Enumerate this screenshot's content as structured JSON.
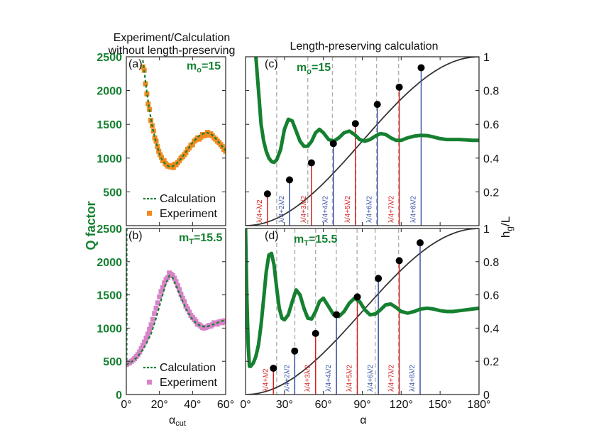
{
  "figure": {
    "left_title_line1": "Experiment/Calculation",
    "left_title_line2": "without length-preserving",
    "right_title": "Length-preserving calculation",
    "y_label_left": "Q factor",
    "y_label_right_main": "h",
    "y_label_right_sub": "g",
    "y_label_right_tail": "/L",
    "x_label_left_main": "α",
    "x_label_left_sub": "cut",
    "x_label_right": "α"
  },
  "colors": {
    "green": "#158030",
    "orange": "#f08a1c",
    "pink": "#d882c8",
    "black_curve": "#333333",
    "red_line": "#d62020",
    "blue_line": "#3a55a8",
    "gray_dash": "#b0b0b0"
  },
  "chart_data": [
    {
      "panel": "a",
      "type": "line",
      "label": "(a)",
      "mode": "mo=15",
      "mode_main": "m",
      "mode_sub": "o",
      "mode_value": "=15",
      "xlim": [
        0,
        60
      ],
      "ylim": [
        0,
        2500
      ],
      "yticks": [
        "500",
        "1000",
        "1500",
        "2000",
        "2500"
      ],
      "ytick_values": [
        500,
        1000,
        1500,
        2000,
        2500
      ],
      "xticks": [],
      "legend": [
        "Calculation",
        "Experiment"
      ],
      "calculation": {
        "x": [
          10,
          11,
          12,
          13,
          14,
          16,
          18,
          20,
          22,
          24,
          26,
          28,
          30,
          33,
          36,
          40,
          44,
          48,
          51,
          54,
          57,
          60
        ],
        "y": [
          2450,
          2250,
          2050,
          1870,
          1700,
          1430,
          1230,
          1060,
          960,
          900,
          875,
          880,
          910,
          990,
          1090,
          1230,
          1330,
          1380,
          1360,
          1290,
          1200,
          1110
        ]
      },
      "experiment": {
        "x": [
          10,
          10.8,
          11.6,
          12.4,
          13.2,
          14,
          14.8,
          15.6,
          16.4,
          17.2,
          18,
          18.8,
          19.6,
          20.4,
          21.2,
          22,
          22.8,
          23.6,
          24.4,
          25.2,
          26,
          26.8,
          27.6,
          28.4,
          29.2,
          30,
          31,
          32,
          33,
          34,
          35,
          36,
          37,
          38,
          39,
          40,
          41,
          42,
          43,
          44,
          45,
          46,
          47,
          48,
          49,
          50,
          51,
          52,
          53,
          54,
          55,
          56,
          57,
          58,
          59,
          60
        ],
        "y": [
          2350,
          2300,
          2100,
          1950,
          1800,
          1720,
          1560,
          1480,
          1400,
          1300,
          1250,
          1170,
          1100,
          1050,
          1010,
          960,
          960,
          920,
          900,
          880,
          880,
          870,
          890,
          860,
          910,
          900,
          930,
          960,
          1000,
          1020,
          1050,
          1080,
          1130,
          1150,
          1190,
          1200,
          1250,
          1270,
          1300,
          1280,
          1310,
          1350,
          1330,
          1350,
          1380,
          1340,
          1360,
          1330,
          1300,
          1280,
          1250,
          1230,
          1200,
          1170,
          1130,
          1100
        ]
      }
    },
    {
      "panel": "b",
      "type": "line",
      "label": "(b)",
      "mode": "mT=15.5",
      "mode_main": "m",
      "mode_sub": "T",
      "mode_value": "=15.5",
      "xlim": [
        0,
        60
      ],
      "ylim": [
        0,
        2500
      ],
      "yticks": [
        "0",
        "500",
        "1000",
        "1500",
        "2000",
        "2500"
      ],
      "ytick_values": [
        0,
        500,
        1000,
        1500,
        2000,
        2500
      ],
      "xticks": [
        "0°",
        "20°",
        "40°",
        "60°"
      ],
      "xtick_values": [
        0,
        20,
        40,
        60
      ],
      "legend": [
        "Calculation",
        "Experiment"
      ],
      "calculation": {
        "x": [
          0,
          3,
          6,
          9,
          12,
          15,
          18,
          21,
          24,
          26,
          28,
          30,
          33,
          36,
          39,
          42,
          45,
          48,
          51,
          54,
          57,
          60
        ],
        "y": [
          450,
          490,
          550,
          640,
          760,
          920,
          1150,
          1420,
          1680,
          1790,
          1760,
          1640,
          1460,
          1290,
          1160,
          1080,
          1030,
          1020,
          1040,
          1070,
          1100,
          1120
        ]
      },
      "experiment": {
        "x": [
          0,
          1,
          2,
          3,
          4,
          5,
          6,
          7,
          8,
          9,
          10,
          11,
          12,
          13,
          14,
          15,
          16,
          17,
          18,
          19,
          20,
          21,
          22,
          23,
          24,
          25,
          26,
          27,
          28,
          29,
          30,
          31,
          32,
          33,
          34,
          35,
          36,
          37,
          38,
          39,
          40,
          41,
          42,
          43,
          44,
          45,
          46,
          47,
          48,
          49,
          50,
          51,
          52,
          53,
          54,
          55,
          56,
          57,
          58,
          59,
          60
        ],
        "y": [
          450,
          470,
          480,
          500,
          520,
          540,
          570,
          600,
          640,
          690,
          740,
          790,
          850,
          910,
          980,
          1050,
          1130,
          1220,
          1300,
          1380,
          1470,
          1550,
          1610,
          1680,
          1730,
          1760,
          1830,
          1810,
          1790,
          1750,
          1700,
          1640,
          1580,
          1510,
          1450,
          1400,
          1330,
          1290,
          1240,
          1190,
          1160,
          1130,
          1100,
          1060,
          1050,
          1030,
          1010,
          1000,
          1010,
          1020,
          1040,
          1030,
          1050,
          1080,
          1070,
          1060,
          1090,
          1100,
          1080,
          1110,
          1100
        ]
      }
    },
    {
      "panel": "c",
      "type": "line",
      "label": "(c)",
      "mode": "mo=15",
      "mode_main": "m",
      "mode_sub": "o",
      "mode_value": "=15",
      "xlim": [
        0,
        180
      ],
      "ylim": [
        0,
        1
      ],
      "yticks_right": [
        "0.2",
        "0.4",
        "0.6",
        "0.8",
        "1"
      ],
      "ytick_values": [
        0.2,
        0.4,
        0.6,
        0.8,
        1.0
      ],
      "xticks": [],
      "q_curve": {
        "x": [
          8,
          9,
          10,
          11,
          12,
          14,
          16,
          18,
          20,
          22,
          24,
          27,
          30,
          33,
          36,
          39,
          42,
          45,
          48,
          51,
          54,
          57,
          60,
          64,
          68,
          72,
          76,
          80,
          84,
          88,
          92,
          96,
          100,
          104,
          108,
          112,
          116,
          120,
          125,
          130,
          135,
          140,
          145,
          150,
          155,
          160,
          165,
          170,
          175,
          180
        ],
        "y": [
          1.0,
          0.9,
          0.8,
          0.7,
          0.6,
          0.5,
          0.44,
          0.4,
          0.38,
          0.375,
          0.39,
          0.45,
          0.57,
          0.63,
          0.62,
          0.56,
          0.5,
          0.47,
          0.47,
          0.5,
          0.55,
          0.57,
          0.55,
          0.51,
          0.5,
          0.52,
          0.55,
          0.56,
          0.54,
          0.51,
          0.5,
          0.51,
          0.53,
          0.545,
          0.54,
          0.52,
          0.505,
          0.505,
          0.52,
          0.53,
          0.535,
          0.533,
          0.525,
          0.515,
          0.51,
          0.51,
          0.51,
          0.508,
          0.505,
          0.505
        ]
      },
      "markers": [
        {
          "x": 16.9,
          "y": 0.188,
          "label_left": "λ",
          "label_mid": "+",
          "label_num": "λ",
          "sign": "4",
          "k": "2",
          "color": "red"
        },
        {
          "x": 33.9,
          "y": 0.271,
          "color": "blue"
        },
        {
          "x": 50.8,
          "y": 0.372,
          "color": "red"
        },
        {
          "x": 67.7,
          "y": 0.486,
          "color": "blue"
        },
        {
          "x": 84.7,
          "y": 0.604,
          "color": "red"
        },
        {
          "x": 101.6,
          "y": 0.718,
          "color": "blue"
        },
        {
          "x": 118.5,
          "y": 0.82,
          "color": "red"
        },
        {
          "x": 135.4,
          "y": 0.935,
          "color": "blue"
        }
      ],
      "gray_dashes_x": [
        24,
        48,
        67,
        85,
        101,
        118
      ],
      "marker_labels": [
        {
          "num_a": "λ",
          "op": "+",
          "mult": "",
          "num_b": "λ",
          "den_a": "4",
          "den_b": "2",
          "text": "λ/4+λ/2"
        },
        {
          "num_a": "λ",
          "op": "+2",
          "mult": "",
          "num_b": "λ",
          "den_a": "4",
          "den_b": "2",
          "text": "λ/4+2λ/2"
        },
        {
          "num_a": "λ",
          "op": "+3",
          "mult": "",
          "num_b": "λ",
          "den_a": "4",
          "den_b": "2",
          "text": "λ/4+3λ/2"
        },
        {
          "num_a": "λ",
          "op": "+4",
          "mult": "",
          "num_b": "λ",
          "den_a": "4",
          "den_b": "2",
          "text": "λ/4+4λ/2"
        },
        {
          "num_a": "λ",
          "op": "+5",
          "mult": "",
          "num_b": "λ",
          "den_a": "4",
          "den_b": "2",
          "text": "λ/4+5λ/2"
        },
        {
          "num_a": "λ",
          "op": "+6",
          "mult": "",
          "num_b": "λ",
          "den_a": "4",
          "den_b": "2",
          "text": "λ/4+6λ/2"
        },
        {
          "num_a": "λ",
          "op": "+7",
          "mult": "",
          "num_b": "λ",
          "den_a": "4",
          "den_b": "2",
          "text": "λ/4+7λ/2"
        },
        {
          "num_a": "λ",
          "op": "+8",
          "mult": "",
          "num_b": "λ",
          "den_a": "4",
          "den_b": "2",
          "text": "λ/4+8λ/2"
        }
      ]
    },
    {
      "panel": "d",
      "type": "line",
      "label": "(d)",
      "mode": "mT=15.5",
      "mode_main": "m",
      "mode_sub": "T",
      "mode_value": "=15.5",
      "xlim": [
        0,
        180
      ],
      "ylim": [
        0,
        1
      ],
      "yticks_right": [
        "0",
        "0.2",
        "0.4",
        "0.6",
        "0.8",
        "1"
      ],
      "ytick_values": [
        0,
        0.2,
        0.4,
        0.6,
        0.8,
        1.0
      ],
      "xticks": [
        "0°",
        "30°",
        "60°",
        "90°",
        "120°",
        "150°",
        "180°"
      ],
      "xtick_values": [
        0,
        30,
        60,
        90,
        120,
        150,
        180
      ],
      "q_curve": {
        "x": [
          0,
          1,
          2,
          3,
          4,
          6,
          8,
          10,
          12,
          14,
          16,
          18,
          20,
          22,
          24,
          26,
          28,
          30,
          33,
          36,
          39,
          42,
          45,
          48,
          51,
          54,
          57,
          60,
          64,
          68,
          72,
          76,
          80,
          84,
          88,
          92,
          96,
          100,
          104,
          108,
          112,
          116,
          120,
          125,
          130,
          135,
          140,
          145,
          150,
          155,
          160,
          165,
          170,
          175,
          180
        ],
        "y": [
          1.0,
          0.6,
          0.3,
          0.17,
          0.17,
          0.19,
          0.23,
          0.3,
          0.42,
          0.58,
          0.74,
          0.84,
          0.85,
          0.78,
          0.64,
          0.52,
          0.46,
          0.45,
          0.48,
          0.56,
          0.63,
          0.6,
          0.52,
          0.46,
          0.455,
          0.5,
          0.56,
          0.58,
          0.53,
          0.48,
          0.47,
          0.5,
          0.55,
          0.58,
          0.56,
          0.51,
          0.48,
          0.485,
          0.51,
          0.54,
          0.545,
          0.525,
          0.5,
          0.49,
          0.5,
          0.515,
          0.52,
          0.515,
          0.505,
          0.5,
          0.5,
          0.505,
          0.51,
          0.515,
          0.52
        ]
      },
      "markers": [
        {
          "x": 21.5,
          "y": 0.158,
          "color": "red"
        },
        {
          "x": 37.9,
          "y": 0.262,
          "color": "blue"
        },
        {
          "x": 54.0,
          "y": 0.368,
          "color": "red"
        },
        {
          "x": 70.1,
          "y": 0.481,
          "color": "blue"
        },
        {
          "x": 86.2,
          "y": 0.588,
          "color": "red"
        },
        {
          "x": 102.4,
          "y": 0.699,
          "color": "blue"
        },
        {
          "x": 118.5,
          "y": 0.806,
          "color": "red"
        },
        {
          "x": 134.6,
          "y": 0.914,
          "color": "blue"
        }
      ],
      "gray_dashes_x": [
        24,
        38,
        54,
        70,
        86,
        100,
        118
      ],
      "marker_labels": [
        {
          "num_a": "λ",
          "op": "+",
          "num_b": "λ",
          "den_a": "4",
          "den_b": "2",
          "text": "λ/4+λ/2"
        },
        {
          "num_a": "λ",
          "op": "+2",
          "num_b": "λ",
          "den_a": "4",
          "den_b": "2",
          "text": "λ/4+2λ/2"
        },
        {
          "num_a": "λ",
          "op": "+3",
          "num_b": "λ",
          "den_a": "4",
          "den_b": "2",
          "text": "λ/4+3λ/2"
        },
        {
          "num_a": "λ",
          "op": "+4",
          "num_b": "λ",
          "den_a": "4",
          "den_b": "2",
          "text": "λ/4+4λ/2"
        },
        {
          "num_a": "λ",
          "op": "+5",
          "num_b": "λ",
          "den_a": "4",
          "den_b": "2",
          "text": "λ/4+5λ/2"
        },
        {
          "num_a": "λ",
          "op": "+6",
          "num_b": "λ",
          "den_a": "4",
          "den_b": "2",
          "text": "λ/4+6λ/2"
        },
        {
          "num_a": "λ",
          "op": "+7",
          "num_b": "λ",
          "den_a": "4",
          "den_b": "2",
          "text": "λ/4+7λ/2"
        },
        {
          "num_a": "λ",
          "op": "+8",
          "num_b": "λ",
          "den_a": "4",
          "den_b": "2",
          "text": "λ/4+8λ/2"
        }
      ]
    }
  ]
}
